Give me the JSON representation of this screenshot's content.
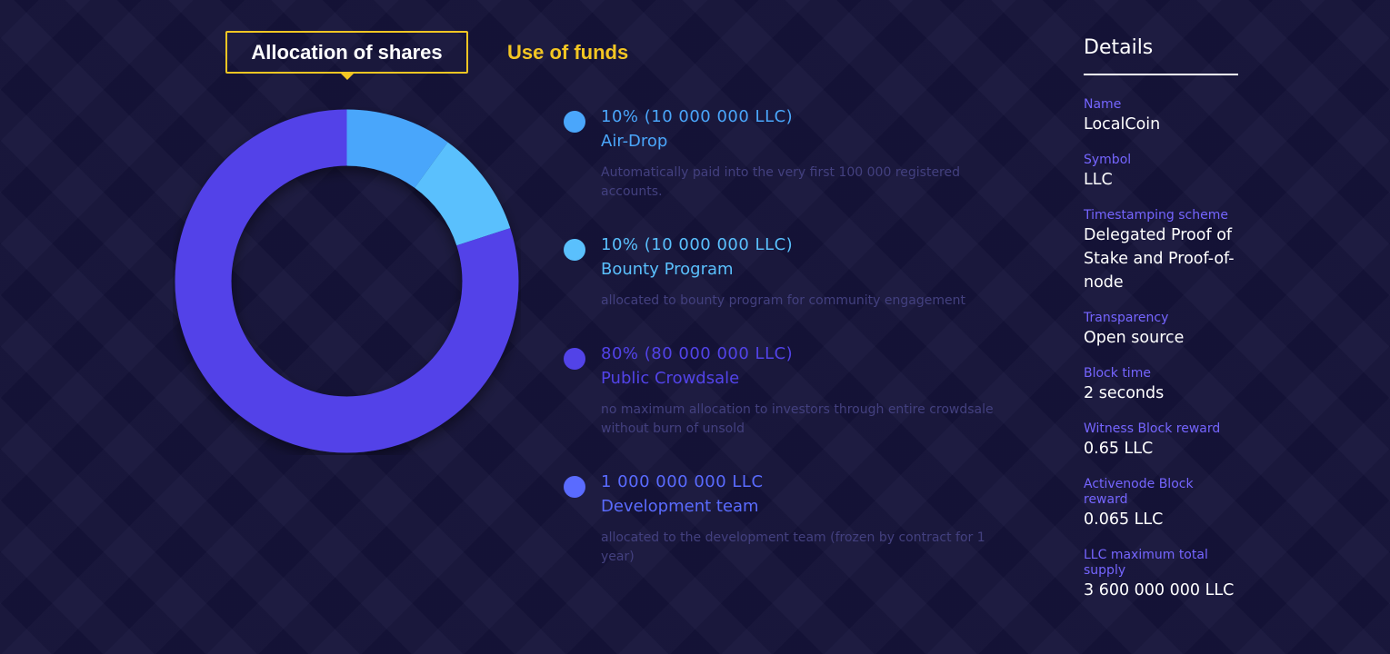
{
  "tabs": {
    "active": "Allocation of shares",
    "inactive": "Use of funds"
  },
  "chart_data": {
    "type": "pie",
    "donut": true,
    "slices": [
      {
        "label": "Air-Drop",
        "value": 10,
        "color": "#4aa6fb"
      },
      {
        "label": "Bounty Program",
        "value": 10,
        "color": "#5ac0fd"
      },
      {
        "label": "Public Crowdsale",
        "value": 80,
        "color": "#5243e8"
      }
    ]
  },
  "legend": [
    {
      "amount": "10% (10 000 000 LLC)",
      "name": "Air-Drop",
      "description": "Automatically paid into the very first 100 000 registered accounts.",
      "color": "#4aa6fb"
    },
    {
      "amount": "10% (10 000 000 LLC)",
      "name": "Bounty Program",
      "description": "allocated to bounty program for community engagement",
      "color": "#5ac0fd"
    },
    {
      "amount": "80% (80 000 000 LLC)",
      "name": "Public Crowdsale",
      "description": "no maximum allocation to investors through entire crowdsale without burn of unsold",
      "color": "#5243e8"
    },
    {
      "amount": "1 000 000 000 LLC",
      "name": "Development team",
      "description": "allocated to the development team (frozen by contract for 1 year)",
      "color": "#5a6bff"
    }
  ],
  "details": {
    "title": "Details",
    "items": [
      {
        "label": "Name",
        "value": "LocalCoin"
      },
      {
        "label": "Symbol",
        "value": "LLC"
      },
      {
        "label": "Timestamping scheme",
        "value": "Delegated Proof of Stake and Proof-of-node"
      },
      {
        "label": "Transparency",
        "value": "Open source"
      },
      {
        "label": "Block time",
        "value": "2 seconds"
      },
      {
        "label": "Witness Block reward",
        "value": "0.65 LLC"
      },
      {
        "label": "Activenode Block reward",
        "value": "0.065 LLC"
      },
      {
        "label": "LLC maximum total supply",
        "value": "3 600 000 000 LLC"
      }
    ]
  }
}
